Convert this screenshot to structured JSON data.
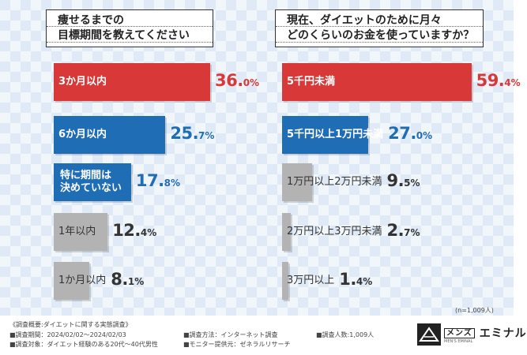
{
  "chart_data": [
    {
      "type": "bar",
      "title": "痩せるまでの目標期間を教えてください",
      "title_lines": [
        "痩せるまでの",
        "目標期間を教えてください"
      ],
      "categories": [
        "3か月以内",
        "6か月以内",
        "特に期間は決めていない",
        "1年以内",
        "1か月以内"
      ],
      "category_lines": [
        [
          "3か月以内"
        ],
        [
          "6か月以内"
        ],
        [
          "特に期間は",
          "決めていない"
        ],
        [
          "1年以内"
        ],
        [
          "1か月以内"
        ]
      ],
      "values": [
        36.0,
        25.7,
        17.8,
        12.4,
        8.1
      ],
      "value_labels": [
        [
          "36.",
          "0%"
        ],
        [
          "25.",
          "7%"
        ],
        [
          "17.",
          "8%"
        ],
        [
          "12.",
          "4%"
        ],
        [
          "8.",
          "1%"
        ]
      ],
      "unit": "%",
      "colors": [
        "#d93838",
        "#1f6db5",
        "#1f6db5",
        "#b3b3b3",
        "#b3b3b3"
      ],
      "xlim": [
        0,
        100
      ]
    },
    {
      "type": "bar",
      "title": "現在、ダイエットのために月々どのくらいのお金を使っていますか？",
      "title_lines": [
        "現在、ダイエットのために月々",
        "どのくらいのお金を使っていますか？"
      ],
      "categories": [
        "5千円未満",
        "5千円以上1万円未満",
        "1万円以上2万円未満",
        "2万円以上3万円未満",
        "3万円以上"
      ],
      "category_lines": [
        [
          "5千円未満"
        ],
        [
          "5千円以上1万円未満"
        ],
        [
          "1万円以上2万円未満"
        ],
        [
          "2万円以上3万円未満"
        ],
        [
          "3万円以上"
        ]
      ],
      "values": [
        59.4,
        27.0,
        9.5,
        2.7,
        1.4
      ],
      "value_labels": [
        [
          "59.",
          "4%"
        ],
        [
          "27.",
          "0%"
        ],
        [
          "9.",
          "5%"
        ],
        [
          "2.",
          "7%"
        ],
        [
          "1.",
          "4%"
        ]
      ],
      "unit": "%",
      "colors": [
        "#d93838",
        "#1f6db5",
        "#b3b3b3",
        "#b3b3b3",
        "#b3b3b3"
      ],
      "xlim": [
        0,
        100
      ]
    }
  ],
  "sample_note": "(n=1,009人)",
  "footer": {
    "col1": [
      "《調査概要:ダイエットに関する実態調査》",
      "■調査期間：2024/02/02～2024/02/03",
      "■調査対象：ダイエット経験のある20代～40代男性"
    ],
    "col2": [
      "■調査方法：インターネット調査",
      "■モニター提供元：ゼネラルリサーチ"
    ],
    "col3": [
      "■調査人数:1,009人"
    ]
  },
  "logo": {
    "box_text": "メンズ",
    "name": "エミナル",
    "sub": "MEN'S EMINAL"
  }
}
